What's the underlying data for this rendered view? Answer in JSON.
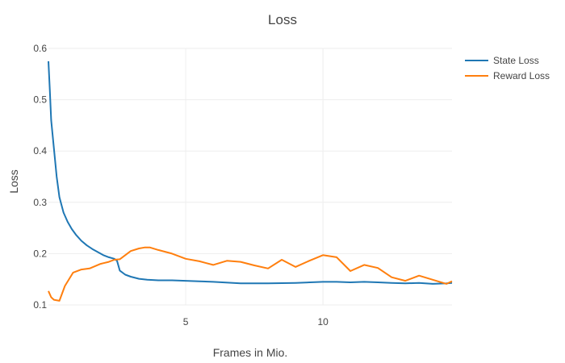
{
  "chart_data": {
    "type": "line",
    "title": "Loss",
    "xlabel": "Frames in Mio.",
    "ylabel": "Loss",
    "xlim": [
      0,
      14.7
    ],
    "ylim": [
      0.1,
      0.6
    ],
    "x_ticks": [
      5,
      10
    ],
    "y_ticks": [
      0.1,
      0.2,
      0.3,
      0.4,
      0.5,
      0.6
    ],
    "x_tick_labels": [
      "5",
      "10"
    ],
    "y_tick_labels": [
      "0.1",
      "0.2",
      "0.3",
      "0.4",
      "0.5",
      "0.6"
    ],
    "grid": true,
    "legend_position": "top-right",
    "series": [
      {
        "name": "State Loss",
        "color": "#1f77b4",
        "x": [
          0,
          0.05,
          0.1,
          0.2,
          0.3,
          0.4,
          0.55,
          0.7,
          0.85,
          1.0,
          1.2,
          1.4,
          1.6,
          1.8,
          2.0,
          2.2,
          2.4,
          2.5,
          2.6,
          2.8,
          3.0,
          3.3,
          3.6,
          4.0,
          4.5,
          5.0,
          5.5,
          6.0,
          7.0,
          8.0,
          9.0,
          10.0,
          10.5,
          11.0,
          11.5,
          12.0,
          12.5,
          13.0,
          13.5,
          14.0,
          14.5,
          14.7
        ],
        "y": [
          0.575,
          0.52,
          0.46,
          0.405,
          0.35,
          0.31,
          0.28,
          0.262,
          0.248,
          0.237,
          0.225,
          0.216,
          0.209,
          0.203,
          0.197,
          0.193,
          0.19,
          0.186,
          0.167,
          0.159,
          0.155,
          0.151,
          0.149,
          0.148,
          0.148,
          0.147,
          0.146,
          0.145,
          0.142,
          0.142,
          0.143,
          0.145,
          0.145,
          0.144,
          0.145,
          0.144,
          0.143,
          0.142,
          0.143,
          0.141,
          0.142,
          0.143
        ]
      },
      {
        "name": "Reward Loss",
        "color": "#ff7f0e",
        "x": [
          0,
          0.1,
          0.2,
          0.4,
          0.6,
          0.9,
          1.2,
          1.5,
          1.9,
          2.2,
          2.4,
          2.6,
          2.8,
          3.0,
          3.3,
          3.5,
          3.7,
          4.0,
          4.5,
          5.0,
          5.5,
          6.0,
          6.5,
          7.0,
          7.5,
          8.0,
          8.5,
          9.0,
          9.5,
          10.0,
          10.5,
          11.0,
          11.5,
          12.0,
          12.5,
          13.0,
          13.5,
          14.0,
          14.5,
          14.7
        ],
        "y": [
          0.127,
          0.115,
          0.11,
          0.108,
          0.137,
          0.163,
          0.169,
          0.171,
          0.18,
          0.184,
          0.188,
          0.189,
          0.197,
          0.205,
          0.21,
          0.212,
          0.212,
          0.207,
          0.2,
          0.19,
          0.185,
          0.178,
          0.186,
          0.184,
          0.177,
          0.171,
          0.188,
          0.174,
          0.186,
          0.197,
          0.193,
          0.166,
          0.178,
          0.172,
          0.154,
          0.147,
          0.157,
          0.149,
          0.141,
          0.146
        ]
      }
    ]
  }
}
